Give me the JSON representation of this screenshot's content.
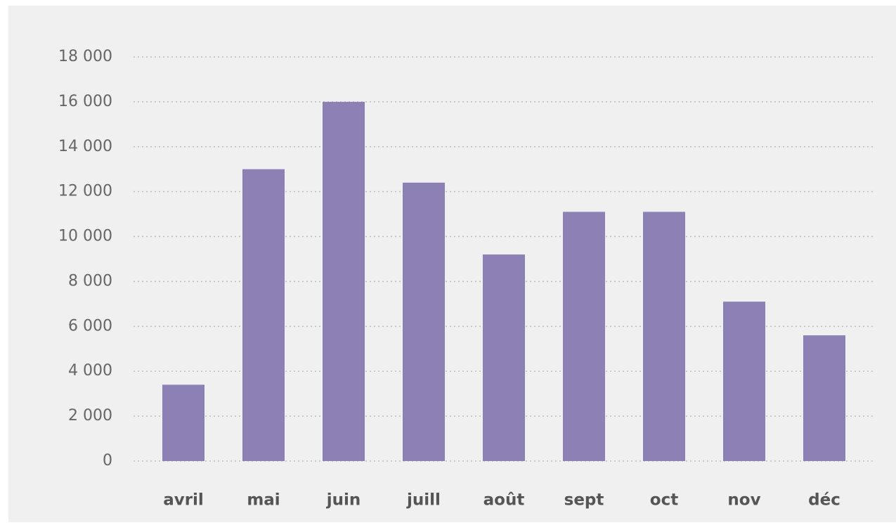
{
  "chart_data": {
    "type": "bar",
    "categories": [
      "avril",
      "mai",
      "juin",
      "juill",
      "août",
      "sept",
      "oct",
      "nov",
      "déc"
    ],
    "values": [
      3400,
      13000,
      16000,
      12400,
      9200,
      11100,
      11100,
      7100,
      5600
    ],
    "color": "#8d80b5",
    "ylim": [
      0,
      18000
    ],
    "yticks": [
      0,
      {
        "value": 2000,
        "label": "2 000"
      },
      {
        "value": 4000,
        "label": "4 000"
      },
      {
        "value": 6000,
        "label": "6 000"
      },
      {
        "value": 8000,
        "label": "8 000"
      },
      {
        "value": 10000,
        "label": "10 000"
      },
      {
        "value": 12000,
        "label": "12 000"
      },
      {
        "value": 14000,
        "label": "14 000"
      },
      {
        "value": 16000,
        "label": "16 000"
      },
      {
        "value": 18000,
        "label": "18 000"
      }
    ],
    "grid": true
  }
}
